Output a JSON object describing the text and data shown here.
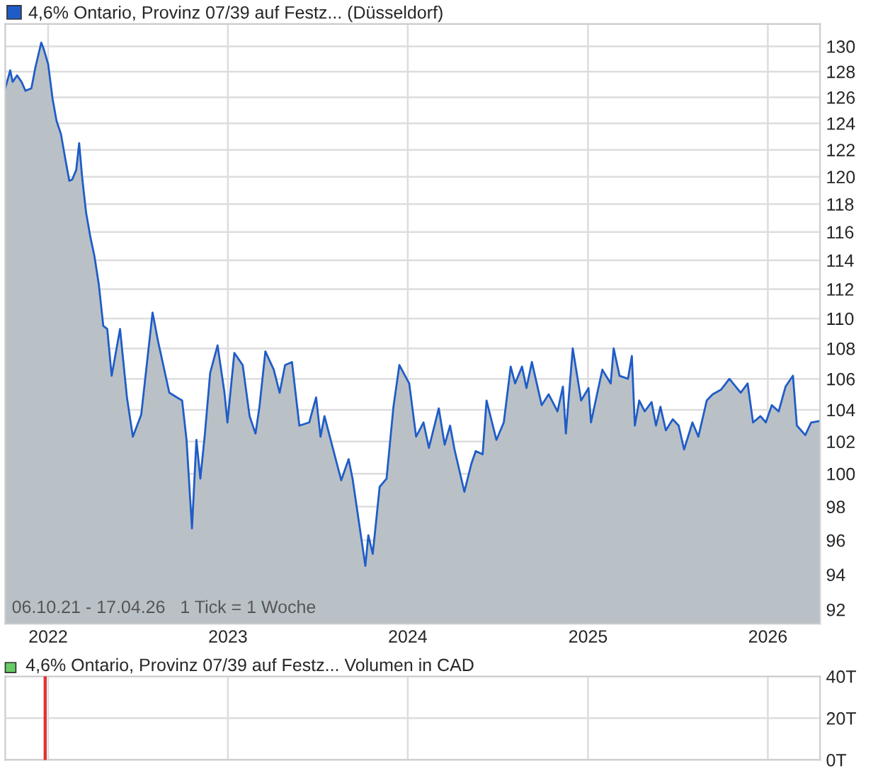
{
  "chart_data": [
    {
      "type": "area",
      "log": "y",
      "x": [
        "2021-10-06",
        "2021-10-16",
        "2021-10-21",
        "2021-10-30",
        "2021-11-08",
        "2021-11-16",
        "2021-11-28",
        "2021-12-06",
        "2021-12-18",
        "2021-12-23",
        "2022-01-01",
        "2022-01-10",
        "2022-01-18",
        "2022-01-27",
        "2022-02-04",
        "2022-02-13",
        "2022-02-19",
        "2022-02-27",
        "2022-03-05",
        "2022-03-11",
        "2022-03-19",
        "2022-03-28",
        "2022-04-05",
        "2022-04-14",
        "2022-04-23",
        "2022-05-01",
        "2022-05-10",
        "2022-05-27",
        "2022-06-10",
        "2022-06-22",
        "2022-07-09",
        "2022-08-01",
        "2022-08-12",
        "2022-09-04",
        "2022-09-30",
        "2022-10-09",
        "2022-10-20",
        "2022-10-29",
        "2022-11-06",
        "2022-11-15",
        "2022-11-26",
        "2022-12-11",
        "2022-12-25",
        "2022-12-31",
        "2023-01-14",
        "2023-01-31",
        "2023-02-14",
        "2023-02-26",
        "2023-03-06",
        "2023-03-18",
        "2023-04-04",
        "2023-04-16",
        "2023-04-27",
        "2023-05-11",
        "2023-05-26",
        "2023-06-15",
        "2023-06-29",
        "2023-07-08",
        "2023-07-16",
        "2023-08-19",
        "2023-09-03",
        "2023-09-11",
        "2023-10-07",
        "2023-10-13",
        "2023-10-22",
        "2023-11-05",
        "2023-11-19",
        "2023-12-03",
        "2023-12-15",
        "2024-01-04",
        "2024-01-18",
        "2024-02-02",
        "2024-02-13",
        "2024-03-04",
        "2024-03-16",
        "2024-03-27",
        "2024-04-05",
        "2024-04-25",
        "2024-05-09",
        "2024-05-18",
        "2024-06-01",
        "2024-06-09",
        "2024-06-29",
        "2024-07-14",
        "2024-07-28",
        "2024-08-06",
        "2024-08-20",
        "2024-08-29",
        "2024-09-09",
        "2024-09-29",
        "2024-10-13",
        "2024-10-31",
        "2024-11-11",
        "2024-11-17",
        "2024-12-01",
        "2024-12-18",
        "2025-01-02",
        "2025-01-07",
        "2025-01-30",
        "2025-02-16",
        "2025-02-22",
        "2025-03-06",
        "2025-03-23",
        "2025-03-31",
        "2025-04-06",
        "2025-04-15",
        "2025-04-26",
        "2025-05-10",
        "2025-05-19",
        "2025-05-28",
        "2025-06-08",
        "2025-06-22",
        "2025-07-04",
        "2025-07-15",
        "2025-08-01",
        "2025-08-13",
        "2025-08-30",
        "2025-09-11",
        "2025-09-28",
        "2025-10-15",
        "2025-11-07",
        "2025-11-21",
        "2025-12-02",
        "2025-12-17",
        "2025-12-28",
        "2026-01-09",
        "2026-01-23",
        "2026-02-06",
        "2026-02-21",
        "2026-03-01",
        "2026-03-18",
        "2026-03-30",
        "2026-04-17"
      ],
      "series": [
        {
          "name": "4,6% Ontario, Provinz 07/39 auf Festz... (Düsseldorf)",
          "color": "#1f5cc8",
          "values": [
            126.7,
            128.1,
            127.2,
            127.7,
            127.2,
            126.5,
            126.7,
            128.3,
            130.3,
            129.8,
            128.6,
            125.9,
            124.2,
            123.2,
            121.5,
            119.7,
            119.8,
            120.5,
            122.5,
            120.0,
            117.4,
            115.6,
            114.3,
            112.3,
            109.5,
            109.3,
            106.2,
            109.3,
            104.8,
            102.3,
            103.7,
            110.4,
            108.5,
            105.1,
            104.6,
            102.1,
            96.7,
            102.1,
            99.7,
            102.4,
            106.4,
            108.2,
            105.1,
            103.2,
            107.7,
            106.9,
            103.6,
            102.5,
            104.2,
            107.8,
            106.6,
            105.1,
            106.9,
            107.1,
            103.0,
            103.2,
            104.8,
            102.3,
            103.6,
            99.6,
            100.9,
            99.7,
            94.5,
            96.3,
            95.2,
            99.2,
            99.7,
            104.2,
            106.9,
            105.7,
            102.3,
            103.2,
            101.6,
            104.1,
            101.8,
            103.0,
            101.5,
            98.9,
            100.6,
            101.4,
            101.2,
            104.6,
            102.1,
            103.2,
            106.8,
            105.7,
            106.8,
            105.4,
            107.1,
            104.3,
            105.0,
            103.9,
            105.5,
            102.5,
            108.0,
            104.6,
            105.4,
            103.2,
            106.6,
            105.7,
            108.0,
            106.2,
            106.0,
            107.5,
            103.0,
            104.6,
            103.9,
            104.5,
            103.0,
            104.2,
            102.7,
            103.4,
            103.0,
            101.5,
            103.2,
            102.3,
            104.6,
            105.0,
            105.3,
            106.0,
            105.1,
            105.7,
            103.2,
            103.6,
            103.2,
            104.3,
            103.9,
            105.5,
            106.2,
            103.0,
            102.4,
            103.2,
            103.3
          ]
        }
      ],
      "xlim": [
        "2021-10-06",
        "2026-04-17"
      ],
      "xticks": [
        {
          "value": "2022-01-01",
          "label": "2022"
        },
        {
          "value": "2023-01-01",
          "label": "2023"
        },
        {
          "value": "2024-01-01",
          "label": "2024"
        },
        {
          "value": "2025-01-01",
          "label": "2025"
        },
        {
          "value": "2026-01-01",
          "label": "2026"
        }
      ],
      "ylim": [
        91.2,
        131.8
      ],
      "yticks": [
        92,
        94,
        96,
        98,
        100,
        102,
        104,
        106,
        108,
        110,
        112,
        114,
        116,
        118,
        120,
        122,
        124,
        126,
        128,
        130
      ],
      "grid": true,
      "legend": "top left",
      "annotations": [
        "06.10.21 - 17.04.26   1 Tick = 1 Woche"
      ]
    },
    {
      "type": "bar",
      "title": "4,6% Ontario, Provinz 07/39 auf Festz... Volumen in CAD",
      "x": [
        "2021-12-26"
      ],
      "series": [
        {
          "color": "#e03030",
          "values": [
            40
          ]
        }
      ],
      "xlim": [
        "2021-10-06",
        "2026-04-17"
      ],
      "xticks": [
        {
          "value": "2022-01-01",
          "label": null
        },
        {
          "value": "2023-01-01",
          "label": null
        },
        {
          "value": "2024-01-01",
          "label": null
        },
        {
          "value": "2025-01-01",
          "label": null
        },
        {
          "value": "2026-01-01",
          "label": null
        }
      ],
      "ylim": [
        0,
        40
      ],
      "yticks": [
        {
          "value": 0,
          "label": "0T"
        },
        {
          "value": 20,
          "label": "20T"
        },
        {
          "value": 40,
          "label": "40T"
        }
      ],
      "grid": true,
      "tick_labels": "y"
    }
  ]
}
